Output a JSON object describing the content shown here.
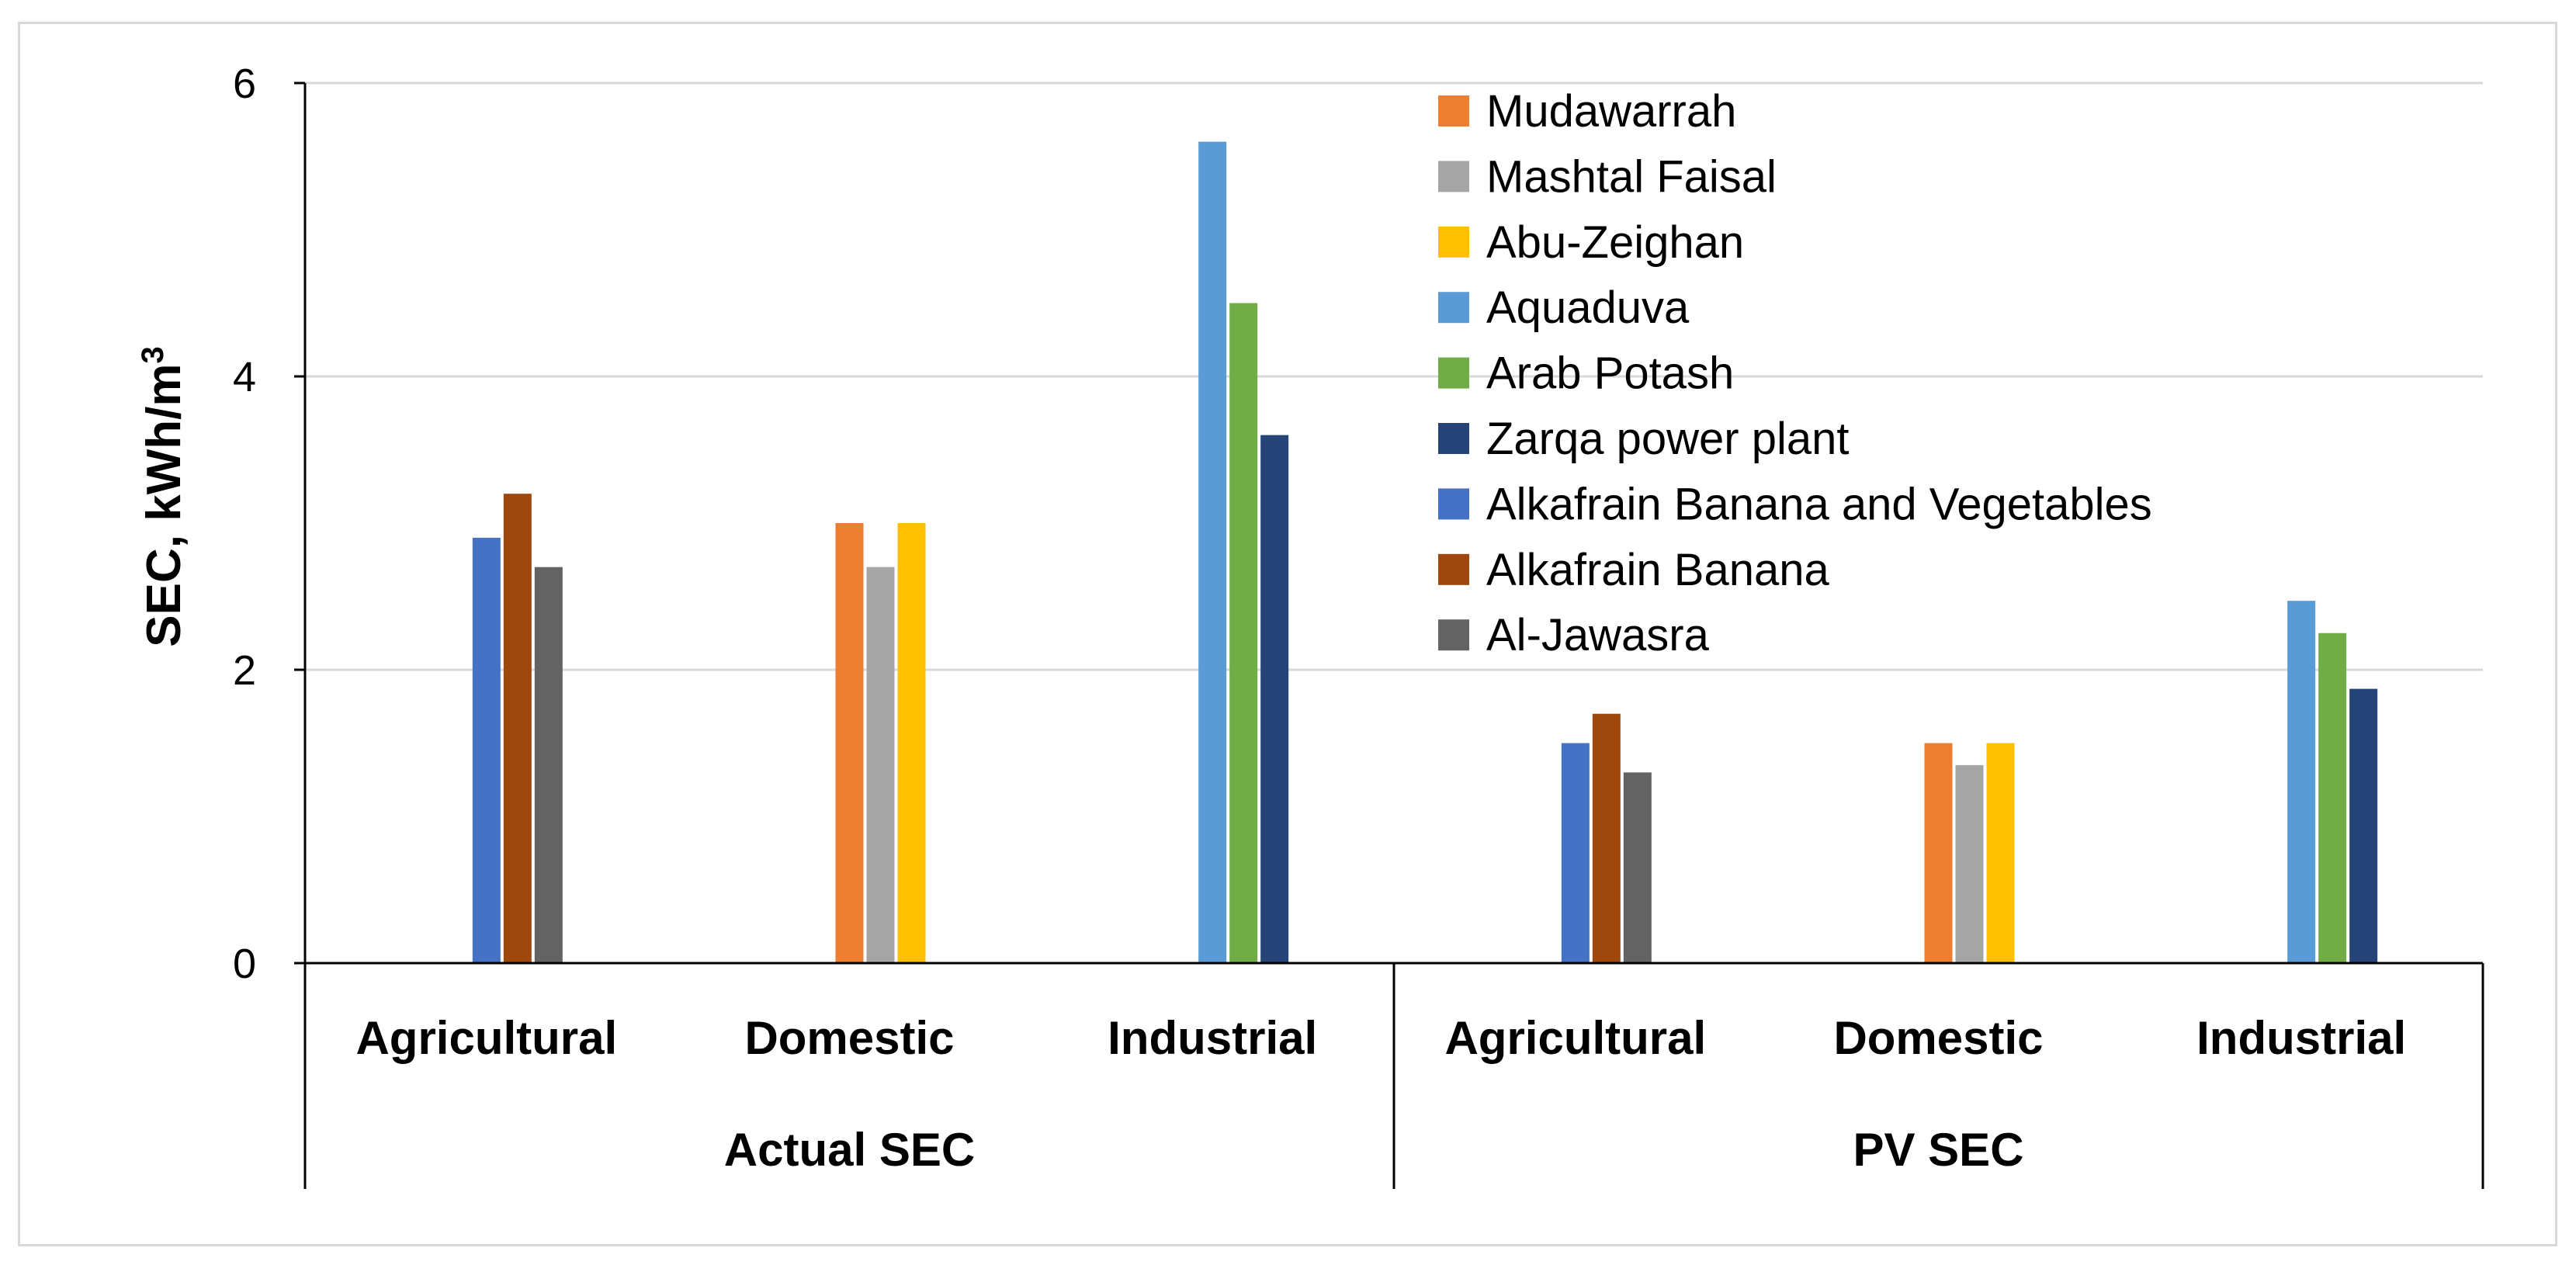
{
  "chart_data": {
    "type": "bar",
    "title": "",
    "ylabel": "SEC, kWh/m",
    "ylabel_superscript": "3",
    "ylim": [
      0,
      6
    ],
    "yticks": [
      0,
      2,
      4,
      6
    ],
    "grid": true,
    "legend_position": "top-right",
    "groups": [
      {
        "label": "Actual SEC",
        "categories": [
          "Agricultural",
          "Domestic",
          "Industrial"
        ]
      },
      {
        "label": "PV SEC",
        "categories": [
          "Agricultural",
          "Domestic",
          "Industrial"
        ]
      }
    ],
    "series": [
      {
        "name": "Mudawarrah",
        "color": "#ED7D31",
        "values": [
          null,
          3.0,
          null,
          null,
          1.5,
          null
        ]
      },
      {
        "name": "Mashtal Faisal",
        "color": "#A5A5A5",
        "values": [
          null,
          2.7,
          null,
          null,
          1.35,
          null
        ]
      },
      {
        "name": "Abu-Zeighan",
        "color": "#FFC000",
        "values": [
          null,
          3.0,
          null,
          null,
          1.5,
          null
        ]
      },
      {
        "name": "Aquaduva",
        "color": "#5B9BD5",
        "values": [
          null,
          null,
          5.6,
          null,
          null,
          2.47
        ]
      },
      {
        "name": "Arab Potash",
        "color": "#70AD47",
        "values": [
          null,
          null,
          4.5,
          null,
          null,
          2.25
        ]
      },
      {
        "name": "Zarqa power plant",
        "color": "#264478",
        "values": [
          null,
          null,
          3.6,
          null,
          null,
          1.87
        ]
      },
      {
        "name": "Alkafrain Banana and Vegetables",
        "color": "#4472C4",
        "values": [
          2.9,
          null,
          null,
          1.5,
          null,
          null
        ]
      },
      {
        "name": "Alkafrain Banana",
        "color": "#9E480E",
        "values": [
          3.2,
          null,
          null,
          1.7,
          null,
          null
        ]
      },
      {
        "name": "Al-Jawasra",
        "color": "#636363",
        "values": [
          2.7,
          null,
          null,
          1.3,
          null,
          null
        ]
      }
    ],
    "axis_color": "#000000",
    "grid_color": "#d9d9d9"
  }
}
